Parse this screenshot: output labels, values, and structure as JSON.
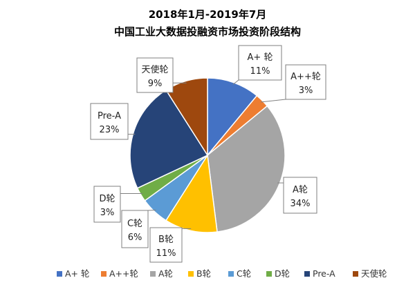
{
  "chart_data": {
    "type": "pie",
    "title": [
      "2018年1月-2019年7月",
      "中国工业大数据投融资市场投资阶段结构"
    ],
    "categories": [
      "A+ 轮",
      "A++轮",
      "A轮",
      "B轮",
      "C轮",
      "D轮",
      "Pre-A",
      "天使轮"
    ],
    "callout_names": [
      "A+ 轮",
      "A++轮",
      "A轮",
      "B轮",
      "C轮",
      "D轮",
      "Pre-A",
      "天使轮"
    ],
    "values": [
      11,
      3,
      34,
      11,
      6,
      3,
      23,
      9
    ],
    "value_labels": [
      "11%",
      "3%",
      "34%",
      "11%",
      "6%",
      "3%",
      "23%",
      "9%"
    ],
    "colors": [
      "#4472C4",
      "#ED7D31",
      "#A5A5A5",
      "#FFC000",
      "#5B9BD5",
      "#70AD47",
      "#264478",
      "#9E480E"
    ],
    "legend_position": "bottom"
  }
}
